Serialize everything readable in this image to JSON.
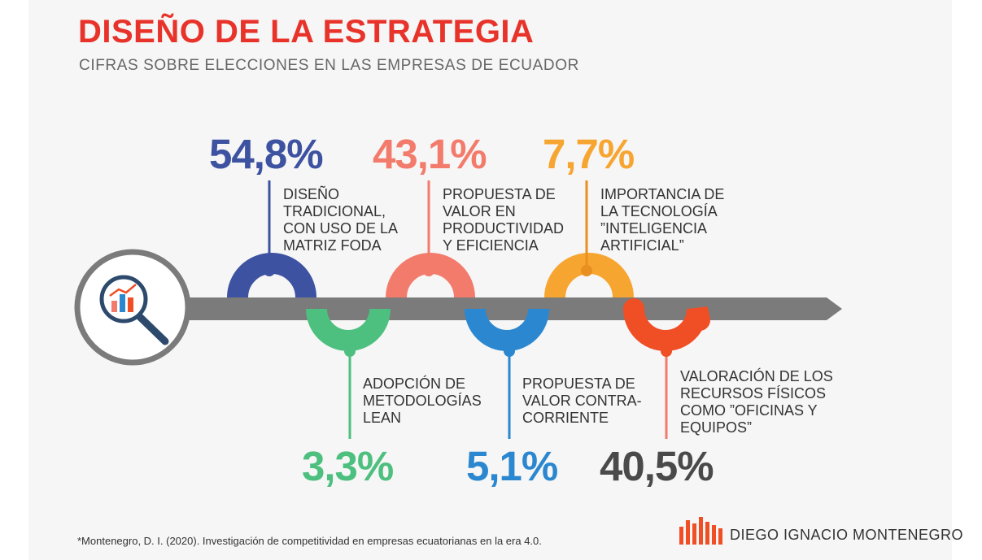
{
  "header": {
    "title": "DISEÑO DE LA ESTRATEGIA",
    "subtitle": "CIFRAS SOBRE ELECCIONES EN LAS EMPRESAS DE ECUADOR"
  },
  "colors": {
    "title": "#e8332a",
    "track": "#7b7b7b",
    "blue_dark": "#3d52a0",
    "green": "#4dbf7e",
    "salmon": "#f37b6c",
    "blue": "#2b87cf",
    "orange": "#f7a531",
    "red": "#f04e24",
    "grey_text": "#4a4a4a"
  },
  "icon": {
    "name": "magnifier-chart-icon"
  },
  "items": [
    {
      "value": "54,8%",
      "lines": [
        "DISEÑO",
        "TRADICIONAL,",
        "CON USO DE LA",
        "MATRIZ FODA"
      ]
    },
    {
      "value": "3,3%",
      "lines": [
        "ADOPCIÓN DE",
        "METODOLOGÍAS",
        "LEAN"
      ]
    },
    {
      "value": "43,1%",
      "lines": [
        "PROPUESTA DE",
        "VALOR EN",
        "PRODUCTIVIDAD",
        "Y EFICIENCIA"
      ]
    },
    {
      "value": "5,1%",
      "lines": [
        "PROPUESTA DE",
        "VALOR CONTRA-",
        "CORRIENTE"
      ]
    },
    {
      "value": "7,7%",
      "lines": [
        "IMPORTANCIA DE",
        "LA TECNOLOGÍA",
        "”INTELIGENCIA",
        "ARTIFICIAL”"
      ]
    },
    {
      "value": "40,5%",
      "lines": [
        "VALORACIÓN DE LOS",
        "RECURSOS FÍSICOS",
        "COMO ”OFICINAS Y",
        "EQUIPOS”"
      ]
    }
  ],
  "footer": {
    "note": "*Montenegro, D. I. (2020). Investigación de competitividad en empresas ecuatorianas en la era 4.0.",
    "brand": "DIEGO IGNACIO MONTENEGRO"
  }
}
